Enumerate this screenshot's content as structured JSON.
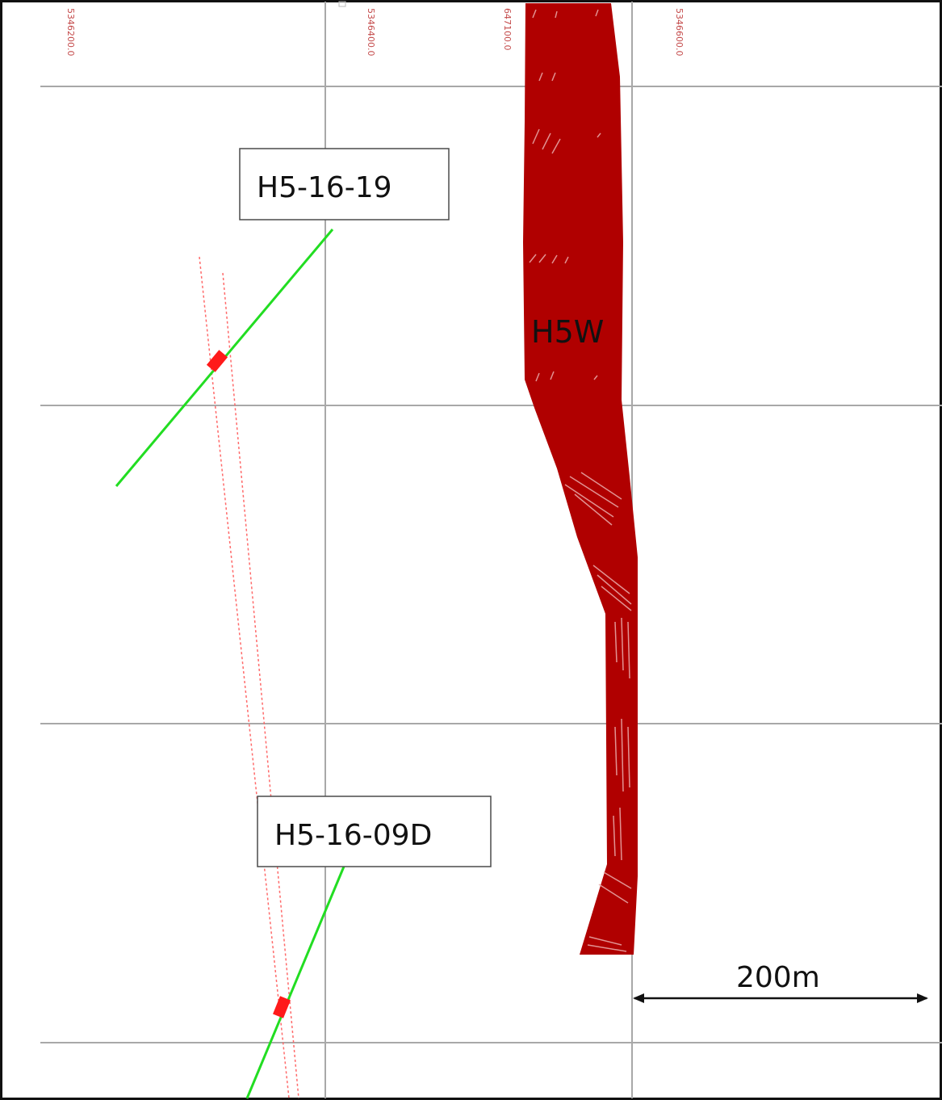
{
  "grid_labels": [
    "5346200.0",
    "5346400.0",
    "647100.0",
    "5346600.0"
  ],
  "drillholes": [
    {
      "name": "H5-16-19",
      "trace_color": "#22dd22",
      "intercept_color": "#ff1a1a"
    },
    {
      "name": "H5-16-09D",
      "trace_color": "#22dd22",
      "intercept_color": "#ff1a1a"
    }
  ],
  "zone": {
    "name": "H5W",
    "color": "#b00000"
  },
  "scale_bar": {
    "label": "200m"
  },
  "colors": {
    "grid": "#a8a8a8",
    "projection_lines": "#ff6a6a",
    "frame": "#111111"
  }
}
